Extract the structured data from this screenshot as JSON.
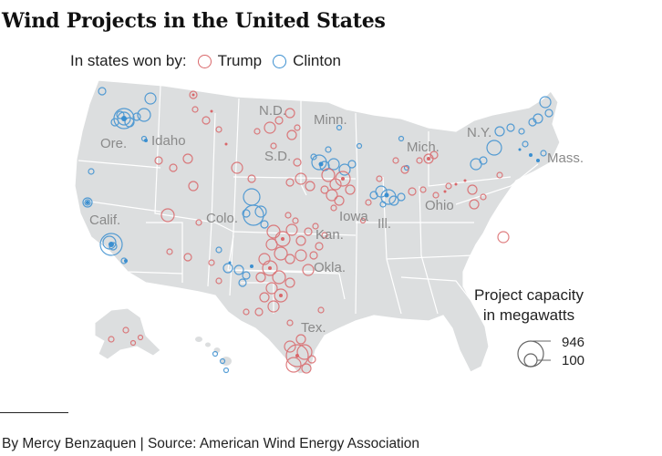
{
  "title": "Wind Projects in the United States",
  "legend": {
    "prefix": "In states won by:",
    "items": [
      {
        "label": "Trump",
        "color": "#d9676a"
      },
      {
        "label": "Clinton",
        "color": "#3b8fd0"
      }
    ]
  },
  "state_labels": [
    "Ore.",
    "Idaho",
    "Calif.",
    "Colo.",
    "N.D.",
    "Minn.",
    "S.D.",
    "Iowa",
    "Kan.",
    "Okla.",
    "Tex.",
    "Ill.",
    "Mich.",
    "Ohio",
    "N.Y.",
    "Mass."
  ],
  "size_key": {
    "title_line1": "Project capacity",
    "title_line2": "in megawatts",
    "large_value": "946",
    "small_value": "100"
  },
  "credit": "By Mercy Benzaquen | Source: American Wind Energy Association",
  "colors": {
    "land": "#dcdedf",
    "border": "#ffffff",
    "trump": "#d9676a",
    "clinton": "#3b8fd0",
    "label": "#8a8a8a"
  }
}
